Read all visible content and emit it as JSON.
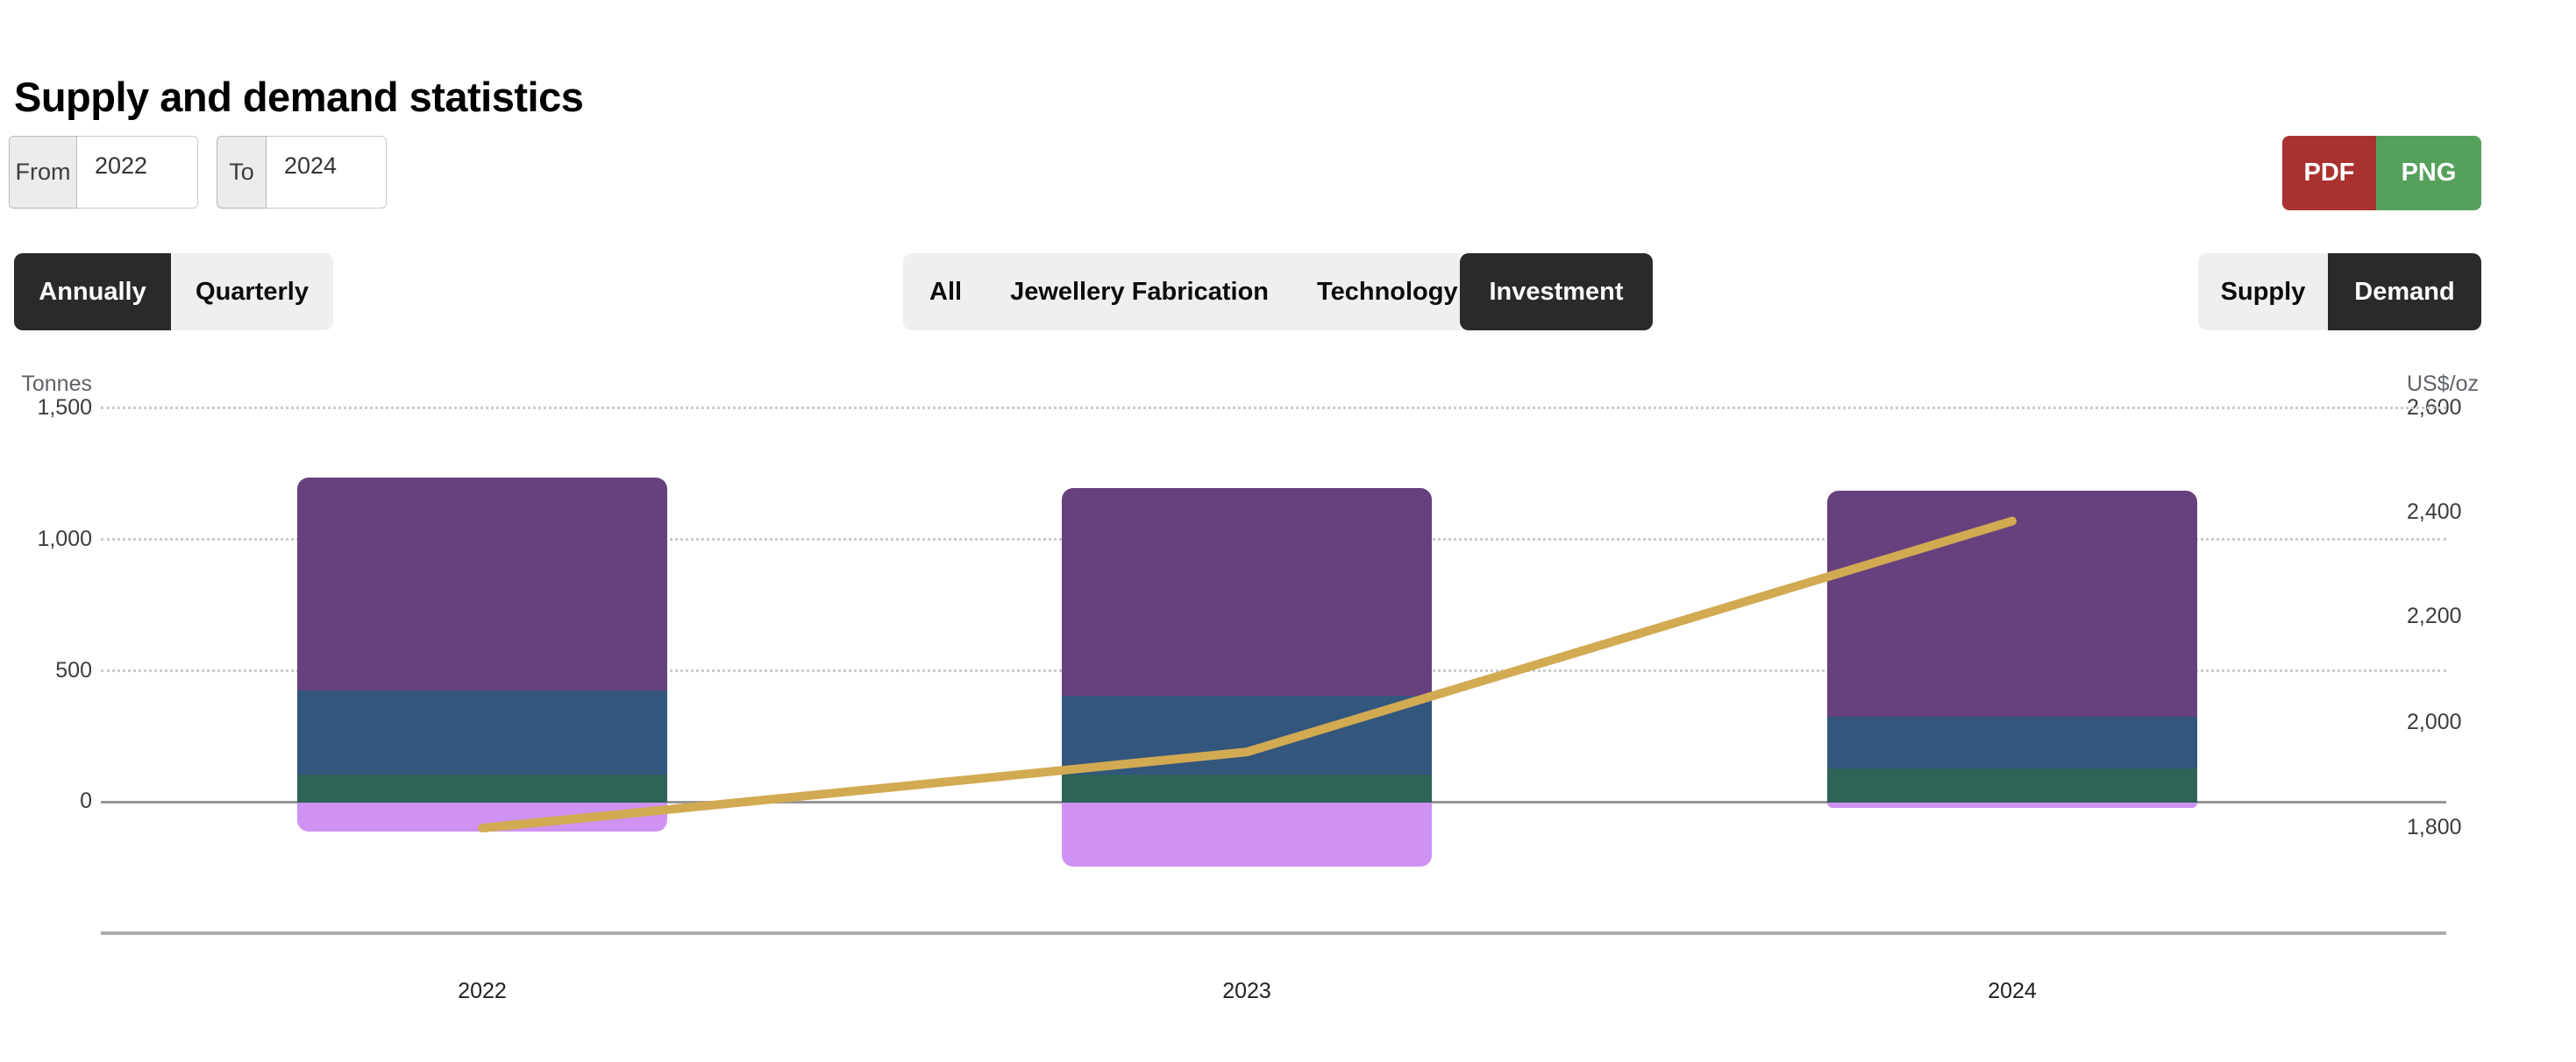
{
  "page": {
    "title": "Supply and demand statistics"
  },
  "controls": {
    "from": {
      "label": "From",
      "value": "2022"
    },
    "to": {
      "label": "To",
      "value": "2024"
    },
    "export": {
      "pdf_label": "PDF",
      "png_label": "PNG"
    },
    "frequency": {
      "options": [
        "Annually",
        "Quarterly"
      ],
      "selected": "Annually"
    },
    "category": {
      "options": [
        "All",
        "Jewellery Fabrication",
        "Technology",
        "Investment"
      ],
      "selected": "Investment"
    },
    "side": {
      "options": [
        "Supply",
        "Demand"
      ],
      "selected": "Demand"
    }
  },
  "colors": {
    "selected_button_bg": "#2b2a2a",
    "unselected_button_bg": "#efefef",
    "pdf_button": "#a93230",
    "png_button": "#55a15c",
    "grid": "#cbcbcb",
    "zero_line": "#969696"
  },
  "chart_data": {
    "type": "bar",
    "subtype": "stacked-columns-with-line-overlay",
    "title": "",
    "categories": [
      "2022",
      "2023",
      "2024"
    ],
    "series": [
      {
        "name": "demand-segment-green-bottom",
        "type": "column",
        "axis": "left",
        "color": "#2e6358",
        "values": [
          105,
          105,
          130
        ]
      },
      {
        "name": "demand-segment-blue-middle",
        "type": "column",
        "axis": "left",
        "color": "#33567d",
        "values": [
          320,
          300,
          195
        ]
      },
      {
        "name": "demand-segment-purple-top",
        "type": "column",
        "axis": "left",
        "color": "#67417d",
        "values": [
          810,
          790,
          860
        ]
      },
      {
        "name": "demand-segment-violet-negative",
        "type": "column",
        "axis": "left",
        "color": "#cf92f2",
        "values": [
          -110,
          -245,
          -20
        ]
      },
      {
        "name": "gold-price-line",
        "type": "line",
        "axis": "right",
        "color": "#d2aa52",
        "values": [
          1800,
          1945,
          2385
        ]
      }
    ],
    "stack_totals": [
      1235,
      1195,
      1185
    ],
    "left_axis": {
      "title": "Tonnes",
      "ticks": [
        "1,500",
        "1,000",
        "500",
        "0"
      ],
      "tick_values": [
        1500,
        1000,
        500,
        0
      ],
      "range_shown": [
        -500,
        1500
      ]
    },
    "right_axis": {
      "title": "US$/oz",
      "ticks": [
        "2,600",
        "2,400",
        "2,200",
        "2,000",
        "1,800"
      ],
      "tick_values": [
        2600,
        2400,
        2200,
        2000,
        1800
      ]
    },
    "grid": "horizontal dotted lines at left-axis ticks, solid line at zero",
    "legend": "none"
  }
}
